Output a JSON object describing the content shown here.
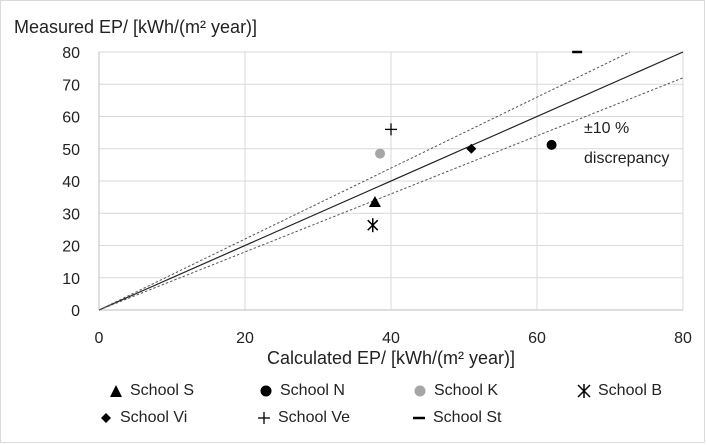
{
  "chart_data": {
    "type": "scatter",
    "ylabel": "Measured EP/ [kWh/(m² year)]",
    "xlabel": "Calculated EP/ [kWh/(m² year)]",
    "xlim": [
      0,
      80
    ],
    "ylim": [
      0,
      80
    ],
    "x_ticks": [
      "0",
      "20",
      "40",
      "60",
      "80"
    ],
    "y_ticks": [
      "0",
      "10",
      "20",
      "30",
      "40",
      "50",
      "60",
      "70",
      "80"
    ],
    "grid": "horizontal and vertical",
    "legend_position": "bottom",
    "annotation": {
      "line1": "±10 %",
      "line2": "discrepancy"
    },
    "reference_lines": [
      {
        "kind": "solid",
        "slope": 1.0
      },
      {
        "kind": "dashed",
        "slope": 1.1
      },
      {
        "kind": "dashed",
        "slope": 0.9
      }
    ],
    "series": [
      {
        "name": "School S",
        "marker": "triangle",
        "color": "#000000",
        "x": 37.8,
        "y": 33.5
      },
      {
        "name": "School N",
        "marker": "circle",
        "color": "#000000",
        "x": 62.0,
        "y": 51.2
      },
      {
        "name": "School K",
        "marker": "circle",
        "color": "#a6a6a6",
        "x": 38.5,
        "y": 48.5
      },
      {
        "name": "School B",
        "marker": "asterisk",
        "color": "#000000",
        "x": 37.5,
        "y": 26.3
      },
      {
        "name": "School Vi",
        "marker": "diamond",
        "color": "#000000",
        "x": 51.0,
        "y": 50.0
      },
      {
        "name": "School Ve",
        "marker": "plus",
        "color": "#000000",
        "x": 40.0,
        "y": 56.0
      },
      {
        "name": "School St",
        "marker": "dash",
        "color": "#000000",
        "x": 65.5,
        "y": 80.0
      }
    ]
  }
}
